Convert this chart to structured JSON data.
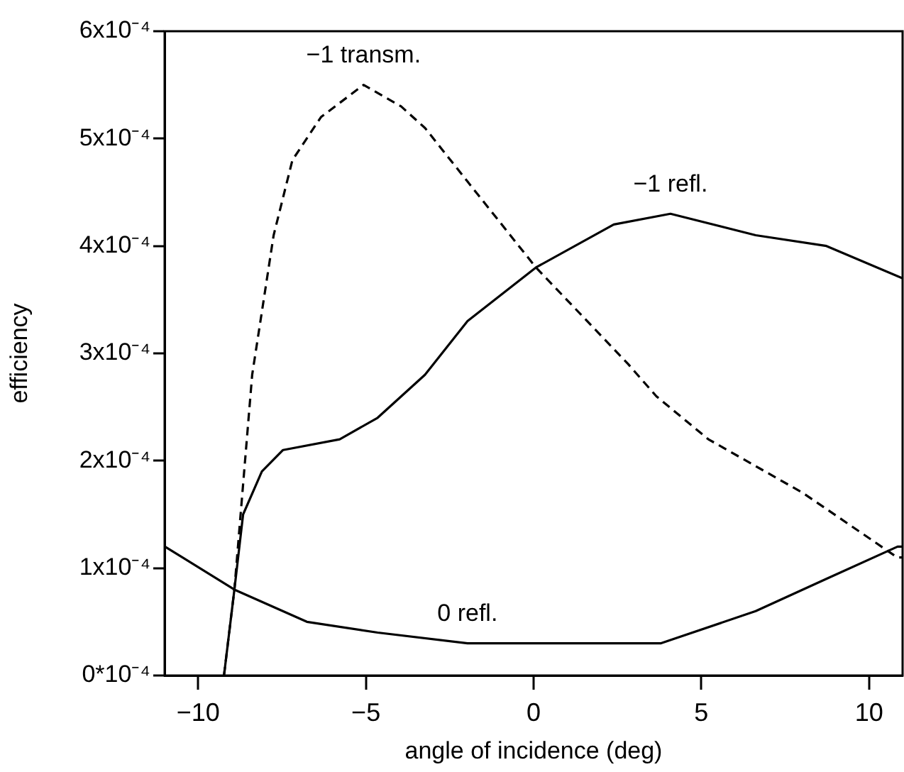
{
  "chart_data": {
    "type": "line",
    "xlabel": "angle of incidence (deg)",
    "ylabel": "efficiency",
    "xlim": [
      -11,
      11
    ],
    "xticks": [
      -10,
      -5,
      0,
      5,
      10
    ],
    "ylim": [
      0,
      0.0006
    ],
    "yticks": [
      {
        "value": 0,
        "label": "0*10⁻⁴"
      },
      {
        "value": 0.0001,
        "label": "1x10⁻⁴"
      },
      {
        "value": 0.0002,
        "label": "2x10⁻⁴"
      },
      {
        "value": 0.0003,
        "label": "3x10⁻⁴"
      },
      {
        "value": 0.0004,
        "label": "4x10⁻⁴"
      },
      {
        "value": 0.0005,
        "label": "5x10⁻⁴"
      },
      {
        "value": 0.0006,
        "label": "6x10⁻⁴"
      }
    ],
    "grid": false,
    "legend": false,
    "marker": "none",
    "series": [
      {
        "name": "−1 transm.",
        "color": "#000000",
        "line_style": "dashed",
        "x": [
          -9.23,
          -8.92,
          -8.39,
          -7.75,
          -7.19,
          -6.34,
          -5.07,
          -3.95,
          -3.24,
          -1.97,
          0.07,
          2.82,
          3.66,
          5.21,
          8.03,
          10.84,
          11
        ],
        "values": [
          0,
          8e-05,
          0.00028,
          0.00041,
          0.00048,
          0.00052,
          0.00055,
          0.00053,
          0.00051,
          0.00046,
          0.00038,
          0.00029,
          0.00026,
          0.00022,
          0.00017,
          0.00011,
          0.00011
        ]
      },
      {
        "name": "−1 refl.",
        "color": "#000000",
        "line_style": "solid",
        "x": [
          -9.23,
          -8.92,
          -8.66,
          -8.1,
          -7.47,
          -5.78,
          -4.65,
          -3.24,
          -1.97,
          0.07,
          2.39,
          4.08,
          6.62,
          8.73,
          10.99
        ],
        "values": [
          0,
          8e-05,
          0.00015,
          0.00019,
          0.00021,
          0.00022,
          0.00024,
          0.00028,
          0.00033,
          0.00038,
          0.00042,
          0.00043,
          0.00041,
          0.0004,
          0.00037
        ]
      },
      {
        "name": "0 refl.",
        "color": "#000000",
        "line_style": "solid",
        "x": [
          -10.99,
          -8.92,
          -6.76,
          -4.65,
          -1.97,
          0,
          3.8,
          6.62,
          8.73,
          10.85,
          11
        ],
        "values": [
          0.00012,
          8e-05,
          5e-05,
          4e-05,
          3e-05,
          3e-05,
          3e-05,
          6e-05,
          9e-05,
          0.00012,
          0.00012
        ]
      }
    ]
  }
}
